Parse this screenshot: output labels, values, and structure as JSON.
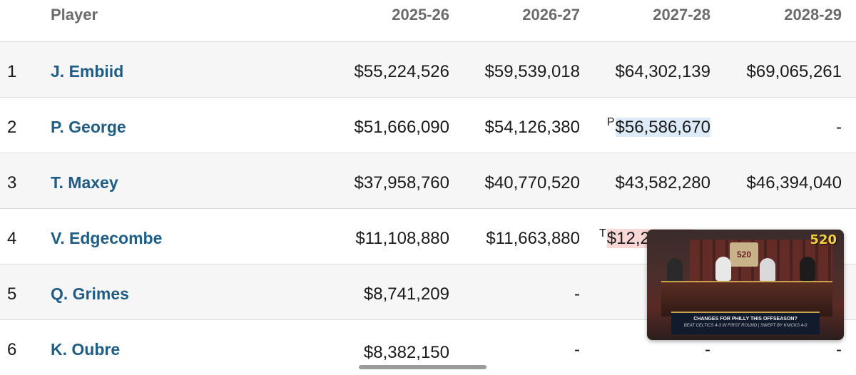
{
  "table": {
    "headers": {
      "player": "Player",
      "s1": "2025-26",
      "s2": "2026-27",
      "s3": "2027-28",
      "s4": "2028-29"
    },
    "rows": [
      {
        "rank": "1",
        "player": "J. Embiid",
        "s1": "$55,224,526",
        "s2": "$59,539,018",
        "s3_flag": "",
        "s3": "$64,302,139",
        "s4": "$69,065,261"
      },
      {
        "rank": "2",
        "player": "P. George",
        "s1": "$51,666,090",
        "s2": "$54,126,380",
        "s3_flag": "P",
        "s3": "$56,586,670",
        "s4": "-"
      },
      {
        "rank": "3",
        "player": "T. Maxey",
        "s1": "$37,958,760",
        "s2": "$40,770,520",
        "s3_flag": "",
        "s3": "$43,582,280",
        "s4": "$46,394,040"
      },
      {
        "rank": "4",
        "player": "V. Edgecombe",
        "s1": "$11,108,880",
        "s2": "$11,663,880",
        "s3_flag": "T",
        "s3": "$12,2",
        "s4": ""
      },
      {
        "rank": "5",
        "player": "Q. Grimes",
        "s1": "$8,741,209",
        "s2": "-",
        "s3_flag": "",
        "s3": "",
        "s4": ""
      },
      {
        "rank": "6",
        "player": "K. Oubre",
        "s1": "$8,382,150",
        "s2": "-",
        "s3_flag": "",
        "s3": "-",
        "s4": "-"
      }
    ]
  },
  "colors": {
    "player_link": "#1f5d84",
    "option_player": "#dcebf7",
    "option_team": "#f8d7d6"
  },
  "video_overlay": {
    "logo": "520",
    "sign": "520",
    "headline": "CHANGES FOR PHILLY THIS OFFSEASON?",
    "subline": "BEAT CELTICS 4-3 IN FIRST ROUND | SWEPT BY KNICKS 4-0"
  }
}
